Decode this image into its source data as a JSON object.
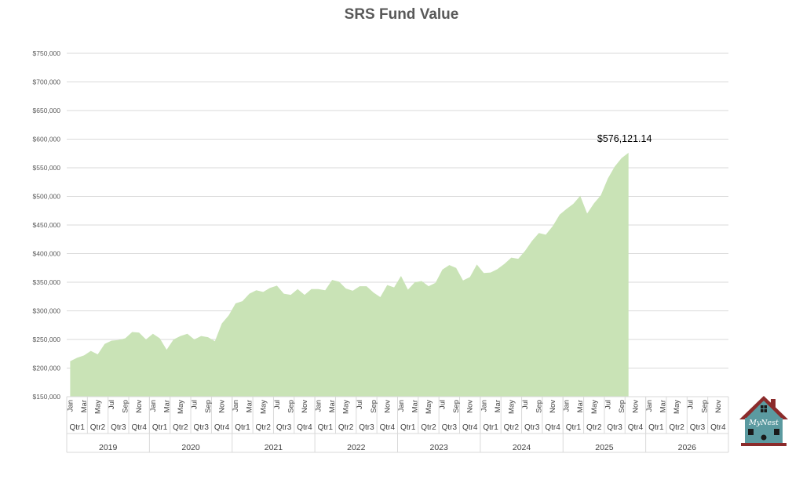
{
  "chart_data": {
    "type": "area",
    "title": "SRS Fund Value",
    "xlabel": "",
    "ylabel": "",
    "ylim": [
      150000,
      750000
    ],
    "y_ticks": [
      "$150,000",
      "$200,000",
      "$250,000",
      "$300,000",
      "$350,000",
      "$400,000",
      "$450,000",
      "$500,000",
      "$550,000",
      "$600,000",
      "$650,000",
      "$700,000",
      "$750,000"
    ],
    "y_tick_values": [
      150000,
      200000,
      250000,
      300000,
      350000,
      400000,
      450000,
      500000,
      550000,
      600000,
      650000,
      700000,
      750000
    ],
    "grid": true,
    "legend": "none",
    "years": [
      "2019",
      "2020",
      "2021",
      "2022",
      "2023",
      "2024",
      "2025",
      "2026"
    ],
    "quarters": [
      "Qtr1",
      "Qtr2",
      "Qtr3",
      "Qtr4"
    ],
    "month_labels": [
      "Jan",
      "Mar",
      "May",
      "Jul",
      "Sep",
      "Nov"
    ],
    "area_color": "#c9e3b6",
    "series": [
      {
        "values": [
          212000,
          218000,
          222000,
          230000,
          224000,
          242000,
          248000,
          249000,
          252000,
          263000,
          262000,
          250000,
          260000,
          252000,
          232000,
          250000,
          256000,
          260000,
          250000,
          256000,
          254000,
          247000,
          278000,
          292000,
          313000,
          317000,
          330000,
          336000,
          333000,
          340000,
          344000,
          330000,
          328000,
          338000,
          328000,
          338000,
          338000,
          336000,
          354000,
          351000,
          339000,
          335000,
          343000,
          343000,
          332000,
          324000,
          345000,
          341000,
          361000,
          337000,
          350000,
          352000,
          343000,
          349000,
          372000,
          380000,
          375000,
          353000,
          359000,
          381000,
          366000,
          367000,
          373000,
          382000,
          393000,
          391000,
          405000,
          422000,
          436000,
          433000,
          448000,
          468000,
          478000,
          487000,
          501000,
          470000,
          488000,
          502000,
          531000,
          552000,
          567000,
          576121.14
        ]
      }
    ],
    "data_label": "$576,121.14"
  },
  "logo": {
    "text": "MyNest",
    "roof_color": "#8b2b2b",
    "wall_color": "#5b9aa0"
  }
}
